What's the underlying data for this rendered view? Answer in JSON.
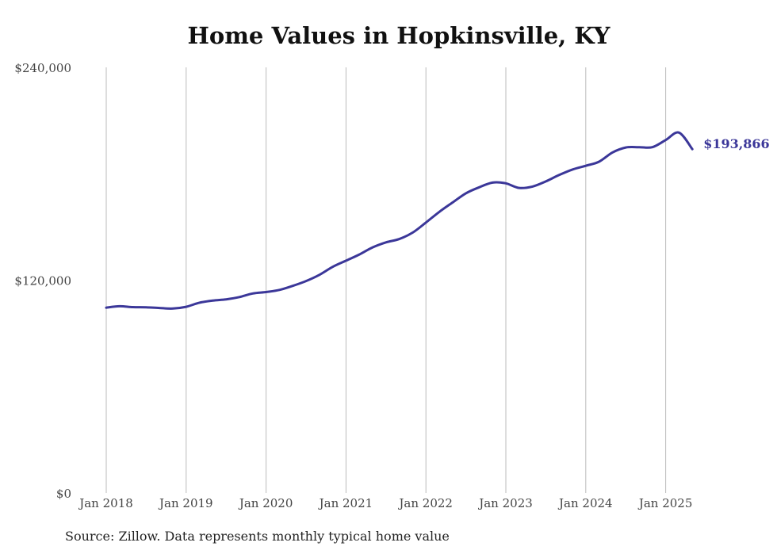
{
  "chart_data": {
    "type": "line",
    "title": "Home Values in Hopkinsville, KY",
    "source": "Source: Zillow. Data represents monthly typical home value",
    "xlabel": "",
    "ylabel": "",
    "ylim": [
      0,
      240000
    ],
    "y_ticks": [
      {
        "value": 0,
        "label": "$0"
      },
      {
        "value": 120000,
        "label": "$120,000"
      },
      {
        "value": 240000,
        "label": "$240,000"
      }
    ],
    "x_ticks": [
      "Jan 2018",
      "Jan 2019",
      "Jan 2020",
      "Jan 2021",
      "Jan 2022",
      "Jan 2023",
      "Jan 2024",
      "Jan 2025"
    ],
    "grid": "vertical",
    "series": [
      {
        "color": "#3b3799",
        "x": [
          "2018-01",
          "2018-03",
          "2018-05",
          "2018-07",
          "2018-09",
          "2018-11",
          "2019-01",
          "2019-03",
          "2019-05",
          "2019-07",
          "2019-09",
          "2019-11",
          "2020-01",
          "2020-03",
          "2020-05",
          "2020-07",
          "2020-09",
          "2020-11",
          "2021-01",
          "2021-03",
          "2021-05",
          "2021-07",
          "2021-09",
          "2021-11",
          "2022-01",
          "2022-03",
          "2022-05",
          "2022-07",
          "2022-09",
          "2022-11",
          "2023-01",
          "2023-03",
          "2023-05",
          "2023-07",
          "2023-09",
          "2023-11",
          "2024-01",
          "2024-03",
          "2024-05",
          "2024-07",
          "2024-09",
          "2024-11",
          "2025-01",
          "2025-03",
          "2025-05"
        ],
        "values": [
          104500,
          105300,
          104800,
          104700,
          104300,
          104000,
          105000,
          107300,
          108500,
          109200,
          110500,
          112500,
          113300,
          114500,
          116800,
          119500,
          123000,
          127500,
          131000,
          134500,
          138500,
          141300,
          143200,
          146800,
          152500,
          158500,
          163800,
          169000,
          172400,
          175000,
          174600,
          172000,
          172800,
          175700,
          179300,
          182400,
          184500,
          186800,
          192000,
          194800,
          195000,
          195000,
          199000,
          203200,
          193866
        ]
      }
    ],
    "end_label": "$193,866"
  }
}
